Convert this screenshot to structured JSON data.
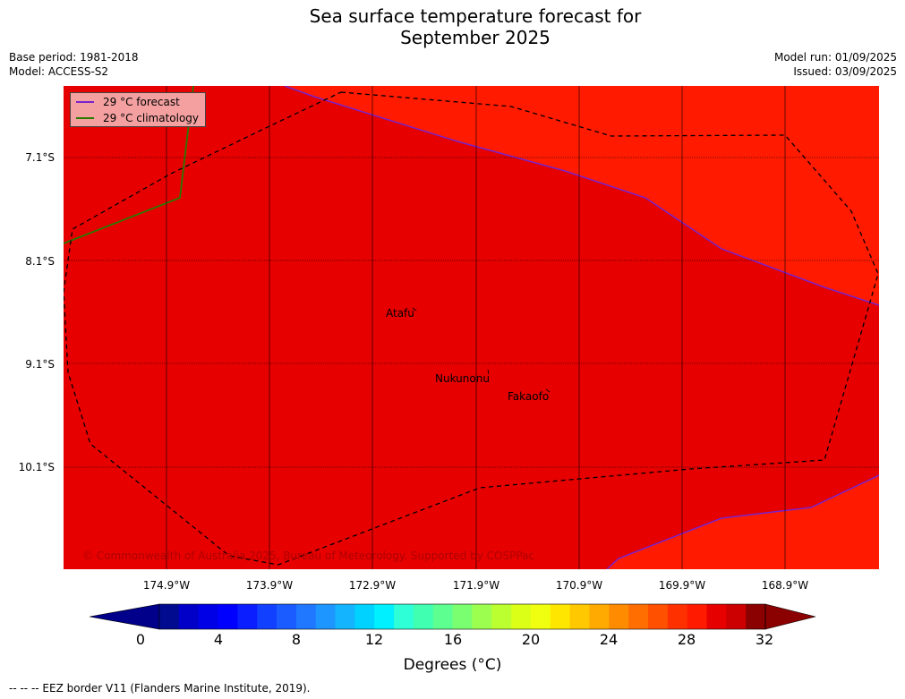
{
  "title": {
    "line1": "Sea surface temperature forecast for",
    "line2": "September 2025"
  },
  "meta": {
    "base_period": "Base period: 1981-2018",
    "model": "Model: ACCESS-S2",
    "model_run": "Model run: 01/09/2025",
    "issued": "Issued: 03/09/2025"
  },
  "legend": {
    "forecast_label": "29 °C  forecast",
    "forecast_color": "#7a22cc",
    "climatology_label": "29 °C  climatology",
    "climatology_color": "#2a7a00"
  },
  "map": {
    "region_colors": {
      "warm": "#e60000",
      "warmer": "#ff1a00"
    },
    "lat_labels": [
      "7.1°S",
      "8.1°S",
      "9.1°S",
      "10.1°S"
    ],
    "lon_labels": [
      "174.9°W",
      "173.9°W",
      "172.9°W",
      "171.9°W",
      "170.9°W",
      "169.9°W",
      "168.9°W"
    ],
    "places": [
      "Atafu",
      "Nukunonu",
      "Fakaofo"
    ],
    "copyright": "© Commonwealth of Australia 2025, Bureau of Meteorology. Supported by COSPPac"
  },
  "colorbar": {
    "ticks": [
      "0",
      "4",
      "8",
      "12",
      "16",
      "20",
      "24",
      "28",
      "32"
    ],
    "title": "Degrees (°C)",
    "colors": [
      "#000b8f",
      "#0000c8",
      "#0000e6",
      "#0000ff",
      "#0a1eff",
      "#1240ff",
      "#1a5cff",
      "#1f78ff",
      "#1e96ff",
      "#14b4ff",
      "#00d2ff",
      "#00f0ff",
      "#2effd6",
      "#40ffb0",
      "#5cff90",
      "#7aff70",
      "#9cff50",
      "#bcff30",
      "#dcff18",
      "#f0ff10",
      "#ffe600",
      "#ffc800",
      "#ffaa00",
      "#ff8c00",
      "#ff6e00",
      "#ff5000",
      "#ff3000",
      "#ff1a00",
      "#e60000",
      "#cc0000",
      "#8b0000"
    ],
    "low_color": "#00008b",
    "high_color": "#8b0000"
  },
  "footer": "--  --  -- EEZ border V11 (Flanders Marine Institute, 2019)."
}
